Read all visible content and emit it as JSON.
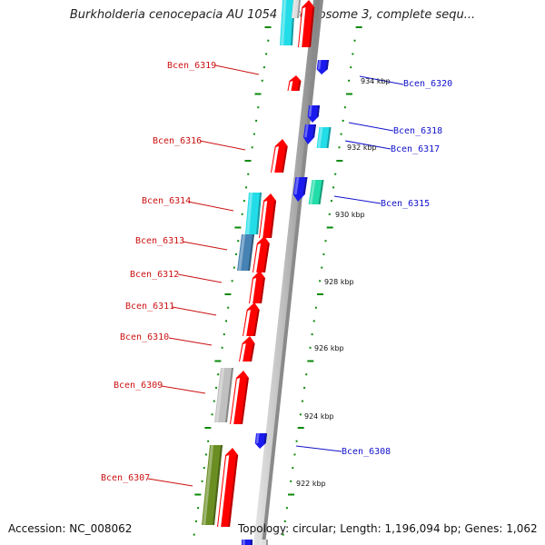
{
  "title": "Burkholderia cenocepacia AU 1054 chromosome 3, complete sequ...",
  "accession": "Accession: NC_008062",
  "topology": "Topology: circular; Length: 1,196,094 bp; Genes: 1,062",
  "colors": {
    "forward": "#ff0000",
    "reverse": "#1a1aee",
    "label_forward": "#cc1111",
    "label_reverse": "#1111cc",
    "cyan": "#22dde8",
    "steelblue": "#4682b4",
    "gray": "#c0c0c0",
    "olive": "#6b8e23",
    "teal_green": "#22ddaa",
    "backbone": "#999999",
    "ticks": "#0a8a0a"
  },
  "genes_forward": [
    {
      "name": "Bcen_6319"
    },
    {
      "name": "Bcen_6316"
    },
    {
      "name": "Bcen_6314"
    },
    {
      "name": "Bcen_6313"
    },
    {
      "name": "Bcen_6312"
    },
    {
      "name": "Bcen_6311"
    },
    {
      "name": "Bcen_6310"
    },
    {
      "name": "Bcen_6309"
    },
    {
      "name": "Bcen_6307"
    }
  ],
  "genes_reverse": [
    {
      "name": "Bcen_6320"
    },
    {
      "name": "Bcen_6318"
    },
    {
      "name": "Bcen_6317"
    },
    {
      "name": "Bcen_6315"
    },
    {
      "name": "Bcen_6308"
    }
  ],
  "scale_labels": [
    "934 kbp",
    "932 kbp",
    "930 kbp",
    "928 kbp",
    "926 kbp",
    "924 kbp",
    "922 kbp"
  ]
}
